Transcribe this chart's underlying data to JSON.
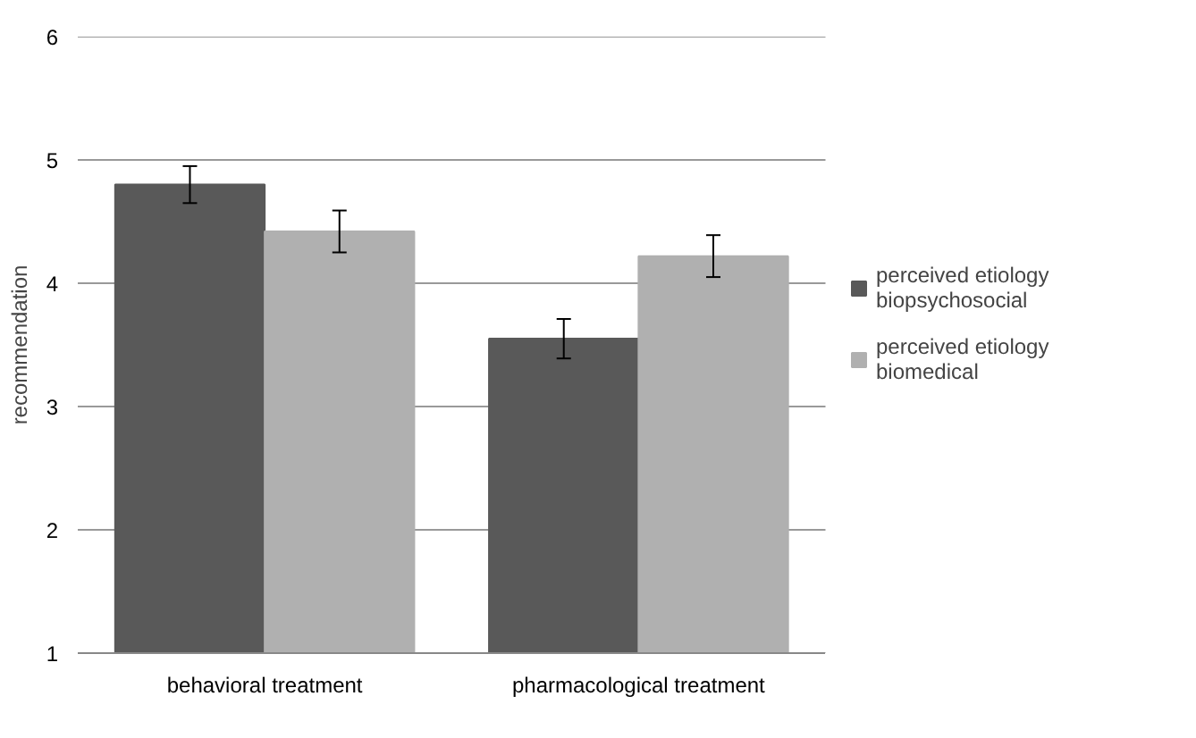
{
  "chart_data": {
    "type": "bar",
    "categories": [
      "behavioral treatment",
      "pharmacological treatment"
    ],
    "ylabel": "recommendation",
    "ylim": [
      1,
      6
    ],
    "yticks": [
      1,
      2,
      3,
      4,
      5,
      6
    ],
    "grid": "y",
    "legend": "right",
    "series": [
      {
        "name": "perceived etiology biopsychosocial",
        "color": "#595959",
        "values": [
          4.8,
          3.55
        ],
        "errors": [
          0.15,
          0.16
        ]
      },
      {
        "name": "perceived etiology biomedical",
        "color": "#b0b0b0",
        "values": [
          4.42,
          4.22
        ],
        "errors": [
          0.17,
          0.17
        ]
      }
    ]
  }
}
